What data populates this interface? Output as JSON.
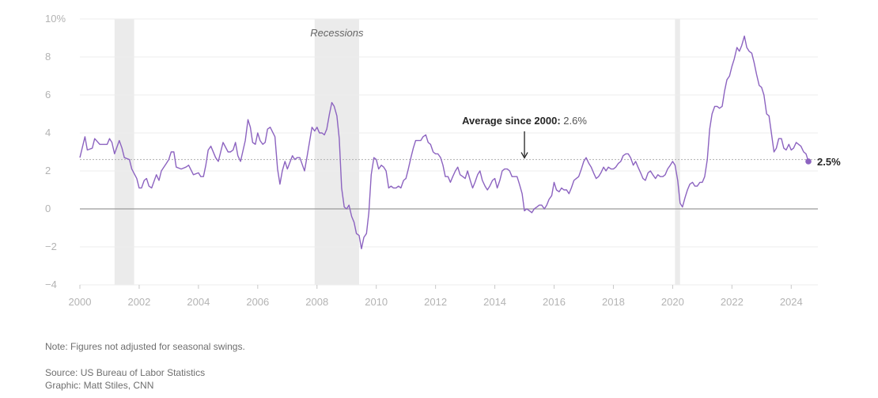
{
  "chart_data": {
    "type": "line",
    "title": "",
    "xlabel": "",
    "ylabel": "",
    "xlim": [
      2000.0,
      2024.9
    ],
    "ylim": [
      -4,
      10
    ],
    "y_ticks": [
      {
        "value": 10,
        "label": "10%"
      },
      {
        "value": 8,
        "label": "8"
      },
      {
        "value": 6,
        "label": "6"
      },
      {
        "value": 4,
        "label": "4"
      },
      {
        "value": 2,
        "label": "2"
      },
      {
        "value": 0,
        "label": "0"
      },
      {
        "value": -2,
        "label": "−2"
      },
      {
        "value": -4,
        "label": "−4"
      }
    ],
    "x_ticks": [
      {
        "value": 2000,
        "label": "2000"
      },
      {
        "value": 2002,
        "label": "2002"
      },
      {
        "value": 2004,
        "label": "2004"
      },
      {
        "value": 2006,
        "label": "2006"
      },
      {
        "value": 2008,
        "label": "2008"
      },
      {
        "value": 2010,
        "label": "2010"
      },
      {
        "value": 2012,
        "label": "2012"
      },
      {
        "value": 2014,
        "label": "2014"
      },
      {
        "value": 2016,
        "label": "2016"
      },
      {
        "value": 2018,
        "label": "2018"
      },
      {
        "value": 2020,
        "label": "2020"
      },
      {
        "value": 2022,
        "label": "2022"
      },
      {
        "value": 2024,
        "label": "2024"
      }
    ],
    "recessions": [
      {
        "start": 2001.17,
        "end": 2001.83
      },
      {
        "start": 2007.92,
        "end": 2009.42
      },
      {
        "start": 2020.08,
        "end": 2020.25
      }
    ],
    "recession_label": "Recessions",
    "average": {
      "value": 2.6,
      "label_bold": "Average since 2000:",
      "label_value": "2.6%",
      "x": 2015.0
    },
    "end_label": "2.5%",
    "grid": true,
    "series": [
      {
        "color": "#8c63c0",
        "points": [
          [
            2000.0,
            2.7
          ],
          [
            2000.17,
            3.8
          ],
          [
            2000.25,
            3.1
          ],
          [
            2000.42,
            3.2
          ],
          [
            2000.5,
            3.7
          ],
          [
            2000.67,
            3.4
          ],
          [
            2000.83,
            3.4
          ],
          [
            2000.92,
            3.4
          ],
          [
            2001.0,
            3.7
          ],
          [
            2001.08,
            3.5
          ],
          [
            2001.17,
            2.9
          ],
          [
            2001.33,
            3.6
          ],
          [
            2001.42,
            3.2
          ],
          [
            2001.5,
            2.7
          ],
          [
            2001.67,
            2.6
          ],
          [
            2001.75,
            2.1
          ],
          [
            2001.92,
            1.6
          ],
          [
            2002.0,
            1.1
          ],
          [
            2002.08,
            1.1
          ],
          [
            2002.17,
            1.5
          ],
          [
            2002.25,
            1.6
          ],
          [
            2002.33,
            1.2
          ],
          [
            2002.42,
            1.1
          ],
          [
            2002.58,
            1.8
          ],
          [
            2002.67,
            1.5
          ],
          [
            2002.75,
            2.0
          ],
          [
            2002.92,
            2.4
          ],
          [
            2003.0,
            2.6
          ],
          [
            2003.08,
            3.0
          ],
          [
            2003.17,
            3.0
          ],
          [
            2003.25,
            2.2
          ],
          [
            2003.42,
            2.1
          ],
          [
            2003.58,
            2.2
          ],
          [
            2003.67,
            2.3
          ],
          [
            2003.83,
            1.8
          ],
          [
            2004.0,
            1.9
          ],
          [
            2004.08,
            1.7
          ],
          [
            2004.17,
            1.7
          ],
          [
            2004.25,
            2.3
          ],
          [
            2004.33,
            3.1
          ],
          [
            2004.42,
            3.3
          ],
          [
            2004.58,
            2.7
          ],
          [
            2004.67,
            2.5
          ],
          [
            2004.83,
            3.5
          ],
          [
            2005.0,
            3.0
          ],
          [
            2005.08,
            3.0
          ],
          [
            2005.17,
            3.1
          ],
          [
            2005.25,
            3.5
          ],
          [
            2005.33,
            2.8
          ],
          [
            2005.42,
            2.5
          ],
          [
            2005.58,
            3.6
          ],
          [
            2005.67,
            4.7
          ],
          [
            2005.75,
            4.3
          ],
          [
            2005.83,
            3.5
          ],
          [
            2005.92,
            3.4
          ],
          [
            2006.0,
            4.0
          ],
          [
            2006.08,
            3.6
          ],
          [
            2006.17,
            3.4
          ],
          [
            2006.25,
            3.5
          ],
          [
            2006.33,
            4.2
          ],
          [
            2006.42,
            4.3
          ],
          [
            2006.58,
            3.8
          ],
          [
            2006.67,
            2.1
          ],
          [
            2006.75,
            1.3
          ],
          [
            2006.83,
            2.0
          ],
          [
            2006.92,
            2.5
          ],
          [
            2007.0,
            2.1
          ],
          [
            2007.17,
            2.8
          ],
          [
            2007.25,
            2.6
          ],
          [
            2007.33,
            2.7
          ],
          [
            2007.42,
            2.7
          ],
          [
            2007.58,
            2.0
          ],
          [
            2007.67,
            2.8
          ],
          [
            2007.83,
            4.3
          ],
          [
            2007.92,
            4.1
          ],
          [
            2008.0,
            4.3
          ],
          [
            2008.08,
            4.0
          ],
          [
            2008.17,
            4.0
          ],
          [
            2008.25,
            3.9
          ],
          [
            2008.33,
            4.2
          ],
          [
            2008.42,
            5.0
          ],
          [
            2008.5,
            5.6
          ],
          [
            2008.58,
            5.4
          ],
          [
            2008.67,
            4.9
          ],
          [
            2008.75,
            3.7
          ],
          [
            2008.83,
            1.1
          ],
          [
            2008.92,
            0.1
          ],
          [
            2009.0,
            0.0
          ],
          [
            2009.08,
            0.2
          ],
          [
            2009.17,
            -0.4
          ],
          [
            2009.25,
            -0.7
          ],
          [
            2009.33,
            -1.3
          ],
          [
            2009.42,
            -1.4
          ],
          [
            2009.5,
            -2.1
          ],
          [
            2009.58,
            -1.5
          ],
          [
            2009.67,
            -1.3
          ],
          [
            2009.75,
            -0.2
          ],
          [
            2009.83,
            1.8
          ],
          [
            2009.92,
            2.7
          ],
          [
            2010.0,
            2.6
          ],
          [
            2010.08,
            2.1
          ],
          [
            2010.17,
            2.3
          ],
          [
            2010.25,
            2.2
          ],
          [
            2010.33,
            2.0
          ],
          [
            2010.42,
            1.1
          ],
          [
            2010.5,
            1.2
          ],
          [
            2010.58,
            1.1
          ],
          [
            2010.67,
            1.1
          ],
          [
            2010.75,
            1.2
          ],
          [
            2010.83,
            1.1
          ],
          [
            2010.92,
            1.5
          ],
          [
            2011.0,
            1.6
          ],
          [
            2011.08,
            2.1
          ],
          [
            2011.17,
            2.7
          ],
          [
            2011.25,
            3.2
          ],
          [
            2011.33,
            3.6
          ],
          [
            2011.42,
            3.6
          ],
          [
            2011.5,
            3.6
          ],
          [
            2011.58,
            3.8
          ],
          [
            2011.67,
            3.9
          ],
          [
            2011.75,
            3.5
          ],
          [
            2011.83,
            3.4
          ],
          [
            2011.92,
            3.0
          ],
          [
            2012.0,
            2.9
          ],
          [
            2012.08,
            2.9
          ],
          [
            2012.17,
            2.7
          ],
          [
            2012.25,
            2.3
          ],
          [
            2012.33,
            1.7
          ],
          [
            2012.42,
            1.7
          ],
          [
            2012.5,
            1.4
          ],
          [
            2012.58,
            1.7
          ],
          [
            2012.67,
            2.0
          ],
          [
            2012.75,
            2.2
          ],
          [
            2012.83,
            1.8
          ],
          [
            2012.92,
            1.7
          ],
          [
            2013.0,
            1.6
          ],
          [
            2013.08,
            2.0
          ],
          [
            2013.17,
            1.5
          ],
          [
            2013.25,
            1.1
          ],
          [
            2013.33,
            1.4
          ],
          [
            2013.42,
            1.8
          ],
          [
            2013.5,
            2.0
          ],
          [
            2013.58,
            1.5
          ],
          [
            2013.67,
            1.2
          ],
          [
            2013.75,
            1.0
          ],
          [
            2013.83,
            1.2
          ],
          [
            2013.92,
            1.5
          ],
          [
            2014.0,
            1.6
          ],
          [
            2014.08,
            1.1
          ],
          [
            2014.17,
            1.5
          ],
          [
            2014.25,
            2.0
          ],
          [
            2014.33,
            2.1
          ],
          [
            2014.42,
            2.1
          ],
          [
            2014.5,
            2.0
          ],
          [
            2014.58,
            1.7
          ],
          [
            2014.67,
            1.7
          ],
          [
            2014.75,
            1.7
          ],
          [
            2014.83,
            1.3
          ],
          [
            2014.92,
            0.8
          ],
          [
            2015.0,
            -0.1
          ],
          [
            2015.08,
            0.0
          ],
          [
            2015.17,
            -0.1
          ],
          [
            2015.25,
            -0.2
          ],
          [
            2015.33,
            0.0
          ],
          [
            2015.42,
            0.1
          ],
          [
            2015.5,
            0.2
          ],
          [
            2015.58,
            0.2
          ],
          [
            2015.67,
            0.0
          ],
          [
            2015.75,
            0.2
          ],
          [
            2015.83,
            0.5
          ],
          [
            2015.92,
            0.7
          ],
          [
            2016.0,
            1.4
          ],
          [
            2016.08,
            1.0
          ],
          [
            2016.17,
            0.9
          ],
          [
            2016.25,
            1.1
          ],
          [
            2016.33,
            1.0
          ],
          [
            2016.42,
            1.0
          ],
          [
            2016.5,
            0.8
          ],
          [
            2016.58,
            1.1
          ],
          [
            2016.67,
            1.5
          ],
          [
            2016.75,
            1.6
          ],
          [
            2016.83,
            1.7
          ],
          [
            2016.92,
            2.1
          ],
          [
            2017.0,
            2.5
          ],
          [
            2017.08,
            2.7
          ],
          [
            2017.17,
            2.4
          ],
          [
            2017.25,
            2.2
          ],
          [
            2017.33,
            1.9
          ],
          [
            2017.42,
            1.6
          ],
          [
            2017.5,
            1.7
          ],
          [
            2017.58,
            1.9
          ],
          [
            2017.67,
            2.2
          ],
          [
            2017.75,
            2.0
          ],
          [
            2017.83,
            2.2
          ],
          [
            2017.92,
            2.1
          ],
          [
            2018.0,
            2.1
          ],
          [
            2018.08,
            2.2
          ],
          [
            2018.17,
            2.4
          ],
          [
            2018.25,
            2.5
          ],
          [
            2018.33,
            2.8
          ],
          [
            2018.42,
            2.9
          ],
          [
            2018.5,
            2.9
          ],
          [
            2018.58,
            2.7
          ],
          [
            2018.67,
            2.3
          ],
          [
            2018.75,
            2.5
          ],
          [
            2018.83,
            2.2
          ],
          [
            2018.92,
            1.9
          ],
          [
            2019.0,
            1.6
          ],
          [
            2019.08,
            1.5
          ],
          [
            2019.17,
            1.9
          ],
          [
            2019.25,
            2.0
          ],
          [
            2019.33,
            1.8
          ],
          [
            2019.42,
            1.6
          ],
          [
            2019.5,
            1.8
          ],
          [
            2019.58,
            1.7
          ],
          [
            2019.67,
            1.7
          ],
          [
            2019.75,
            1.8
          ],
          [
            2019.83,
            2.1
          ],
          [
            2019.92,
            2.3
          ],
          [
            2020.0,
            2.5
          ],
          [
            2020.08,
            2.3
          ],
          [
            2020.17,
            1.5
          ],
          [
            2020.25,
            0.3
          ],
          [
            2020.33,
            0.1
          ],
          [
            2020.42,
            0.6
          ],
          [
            2020.5,
            1.0
          ],
          [
            2020.58,
            1.3
          ],
          [
            2020.67,
            1.4
          ],
          [
            2020.75,
            1.2
          ],
          [
            2020.83,
            1.2
          ],
          [
            2020.92,
            1.4
          ],
          [
            2021.0,
            1.4
          ],
          [
            2021.08,
            1.7
          ],
          [
            2021.17,
            2.6
          ],
          [
            2021.25,
            4.2
          ],
          [
            2021.33,
            5.0
          ],
          [
            2021.42,
            5.4
          ],
          [
            2021.5,
            5.4
          ],
          [
            2021.58,
            5.3
          ],
          [
            2021.67,
            5.4
          ],
          [
            2021.75,
            6.2
          ],
          [
            2021.83,
            6.8
          ],
          [
            2021.92,
            7.0
          ],
          [
            2022.0,
            7.5
          ],
          [
            2022.08,
            7.9
          ],
          [
            2022.17,
            8.5
          ],
          [
            2022.25,
            8.3
          ],
          [
            2022.33,
            8.6
          ],
          [
            2022.42,
            9.1
          ],
          [
            2022.5,
            8.5
          ],
          [
            2022.58,
            8.3
          ],
          [
            2022.67,
            8.2
          ],
          [
            2022.75,
            7.7
          ],
          [
            2022.83,
            7.1
          ],
          [
            2022.92,
            6.5
          ],
          [
            2023.0,
            6.4
          ],
          [
            2023.08,
            6.0
          ],
          [
            2023.17,
            5.0
          ],
          [
            2023.25,
            4.9
          ],
          [
            2023.33,
            4.0
          ],
          [
            2023.42,
            3.0
          ],
          [
            2023.5,
            3.2
          ],
          [
            2023.58,
            3.7
          ],
          [
            2023.67,
            3.7
          ],
          [
            2023.75,
            3.2
          ],
          [
            2023.83,
            3.1
          ],
          [
            2023.92,
            3.4
          ],
          [
            2024.0,
            3.1
          ],
          [
            2024.08,
            3.2
          ],
          [
            2024.17,
            3.5
          ],
          [
            2024.25,
            3.4
          ],
          [
            2024.33,
            3.3
          ],
          [
            2024.42,
            3.0
          ],
          [
            2024.5,
            2.9
          ],
          [
            2024.58,
            2.5
          ]
        ]
      }
    ]
  },
  "footer": {
    "note": "Note: Figures not adjusted for seasonal swings.",
    "source": "Source: US Bureau of Labor Statistics",
    "graphic": "Graphic: Matt Stiles, CNN"
  }
}
